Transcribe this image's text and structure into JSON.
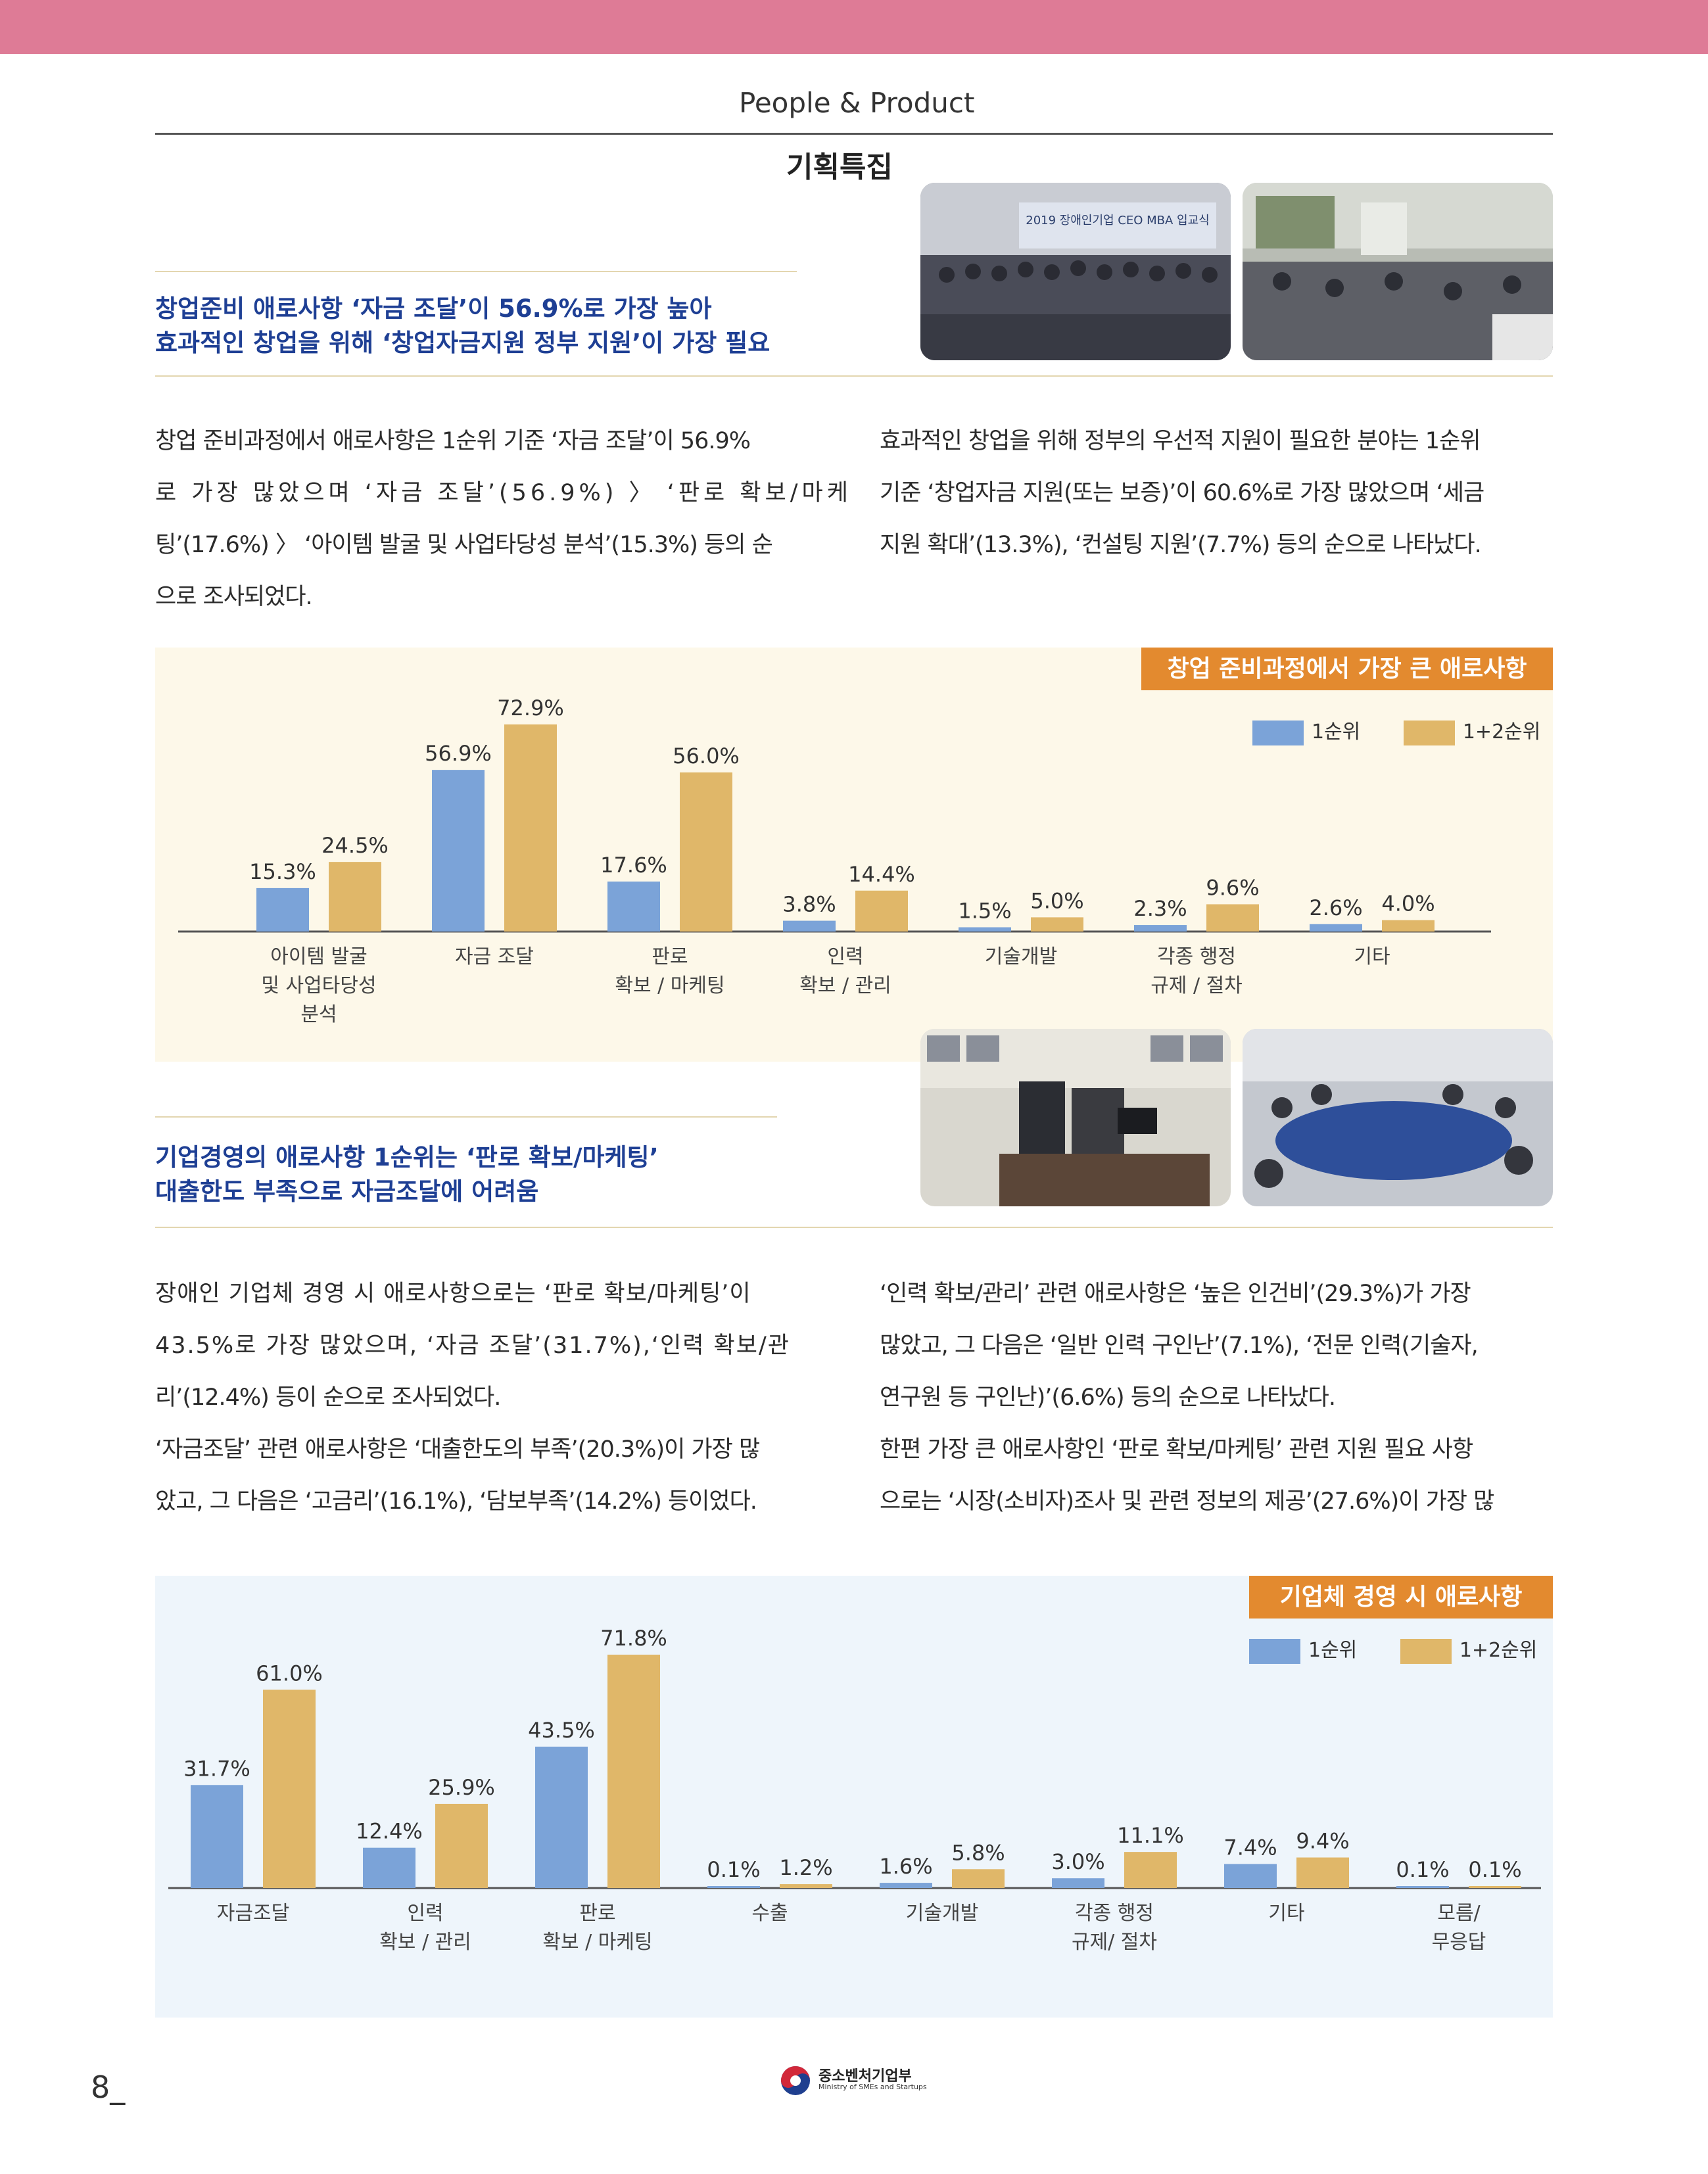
{
  "header": {
    "section": "People & Product",
    "feature": "기획특집"
  },
  "section1": {
    "headline": [
      "창업준비 애로사항 ‘자금 조달’이 56.9%로 가장 높아",
      "효과적인 창업을 위해 ‘창업자금지원 정부 지원’이 가장 필요"
    ],
    "left_lines": [
      "창업 준비과정에서 애로사항은 1순위 기준 ‘자금 조달’이 56.9%",
      "로 가장 많았으며 ‘자금 조달’(56.9%) 〉 ‘판로 확보/마케",
      "팅’(17.6%) 〉 ‘아이템 발굴 및 사업타당성 분석’(15.3%) 등의 순",
      "으로 조사되었다."
    ],
    "right_lines": [
      "효과적인 창업을 위해 정부의 우선적 지원이 필요한 분야는 1순위",
      "기준 ‘창업자금 지원(또는 보증)’이 60.6%로 가장 많았으며 ‘세금",
      "지원 확대’(13.3%), ‘컨설팅 지원’(7.7%) 등의 순으로 나타났다."
    ]
  },
  "photos": {
    "banner_text": "2019 장애인기업 CEO MBA 입교식"
  },
  "section2": {
    "headline": [
      "기업경영의 애로사항 1순위는 ‘판로 확보/마케팅’",
      "대출한도 부족으로 자금조달에 어려움"
    ],
    "left_lines": [
      "장애인 기업체 경영 시 애로사항으로는 ‘판로 확보/마케팅’이",
      "43.5%로 가장 많았으며, ‘자금 조달’(31.7%),‘인력 확보/관",
      "리’(12.4%) 등이 순으로 조사되었다.",
      "‘자금조달’ 관련 애로사항은 ‘대출한도의 부족’(20.3%)이 가장 많",
      "았고, 그 다음은 ‘고금리’(16.1%), ‘담보부족’(14.2%) 등이었다."
    ],
    "right_lines": [
      "‘인력 확보/관리’ 관련 애로사항은 ‘높은 인건비’(29.3%)가 가장",
      "많았고, 그 다음은 ‘일반 인력 구인난’(7.1%), ‘전문 인력(기술자,",
      "연구원 등 구인난)’(6.6%) 등의 순으로 나타났다.",
      "한편 가장 큰 애로사항인 ‘판로 확보/마케팅’ 관련 지원 필요 사항",
      "으로는 ‘시장(소비자)조사 및 관련 정보의 제공’(27.6%)이 가장 많"
    ]
  },
  "chart_data": [
    {
      "type": "bar",
      "title": "창업 준비과정에서 가장 큰 애로사항",
      "categories": [
        [
          "아이템 발굴",
          "및 사업타당성",
          "분석"
        ],
        [
          "자금 조달"
        ],
        [
          "판로",
          "확보 / 마케팅"
        ],
        [
          "인력",
          "확보 / 관리"
        ],
        [
          "기술개발"
        ],
        [
          "각종 행정",
          "규제 / 절차"
        ],
        [
          "기타"
        ]
      ],
      "series": [
        {
          "name": "1순위",
          "values": [
            15.3,
            56.9,
            17.6,
            3.8,
            1.5,
            2.3,
            2.6
          ]
        },
        {
          "name": "1+2순위",
          "values": [
            24.5,
            72.9,
            56.0,
            14.4,
            5.0,
            9.6,
            4.0
          ]
        }
      ],
      "colors": [
        "#7ba3d8",
        "#e0b769"
      ],
      "ylim": [
        0,
        72.9
      ],
      "legend": "top-right",
      "background": "#fdf8e9"
    },
    {
      "type": "bar",
      "title": "기업체 경영 시 애로사항",
      "categories": [
        [
          "자금조달"
        ],
        [
          "인력",
          "확보 / 관리"
        ],
        [
          "판로",
          "확보 / 마케팅"
        ],
        [
          "수출"
        ],
        [
          "기술개발"
        ],
        [
          "각종 행정",
          "규제/ 절차"
        ],
        [
          "기타"
        ],
        [
          "모름/",
          "무응답"
        ]
      ],
      "series": [
        {
          "name": "1순위",
          "values": [
            31.7,
            12.4,
            43.5,
            0.1,
            1.6,
            3.0,
            7.4,
            0.1
          ]
        },
        {
          "name": "1+2순위",
          "values": [
            61.0,
            25.9,
            71.8,
            1.2,
            5.8,
            11.1,
            9.4,
            0.1
          ]
        }
      ],
      "colors": [
        "#7ba3d8",
        "#e0b769"
      ],
      "ylim": [
        0,
        71.8
      ],
      "legend": "top-right",
      "background": "#eef5fb"
    }
  ],
  "footer": {
    "page": "8_",
    "ministry": "중소벤처기업부",
    "ministry_en": "Ministry of SMEs and Startups"
  }
}
